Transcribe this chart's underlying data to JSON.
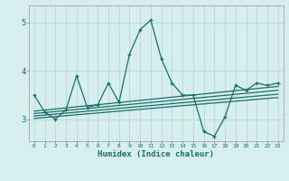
{
  "title": "",
  "xlabel": "Humidex (Indice chaleur)",
  "ylabel": "",
  "bg_color": "#d7eeee",
  "line_color": "#1a6e6a",
  "grid_color": "#b8d8d8",
  "xlim": [
    -0.5,
    23.5
  ],
  "ylim": [
    2.55,
    5.35
  ],
  "yticks": [
    3,
    4,
    5
  ],
  "xticks": [
    0,
    1,
    2,
    3,
    4,
    5,
    6,
    7,
    8,
    9,
    10,
    11,
    12,
    13,
    14,
    15,
    16,
    17,
    18,
    19,
    20,
    21,
    22,
    23
  ],
  "main_line_x": [
    0,
    1,
    2,
    3,
    4,
    5,
    6,
    7,
    8,
    9,
    10,
    11,
    12,
    13,
    14,
    15,
    16,
    17,
    18,
    19,
    20,
    21,
    22,
    23
  ],
  "main_line_y": [
    3.5,
    3.15,
    3.0,
    3.2,
    3.9,
    3.25,
    3.3,
    3.75,
    3.35,
    4.35,
    4.85,
    5.05,
    4.25,
    3.75,
    3.5,
    3.5,
    2.75,
    2.65,
    3.05,
    3.7,
    3.6,
    3.75,
    3.7,
    3.75
  ],
  "reg_line1_x": [
    0,
    23
  ],
  "reg_line1_y": [
    3.02,
    3.45
  ],
  "reg_line2_x": [
    0,
    23
  ],
  "reg_line2_y": [
    3.07,
    3.52
  ],
  "reg_line3_x": [
    0,
    23
  ],
  "reg_line3_y": [
    3.12,
    3.6
  ],
  "reg_line4_x": [
    0,
    23
  ],
  "reg_line4_y": [
    3.17,
    3.68
  ]
}
